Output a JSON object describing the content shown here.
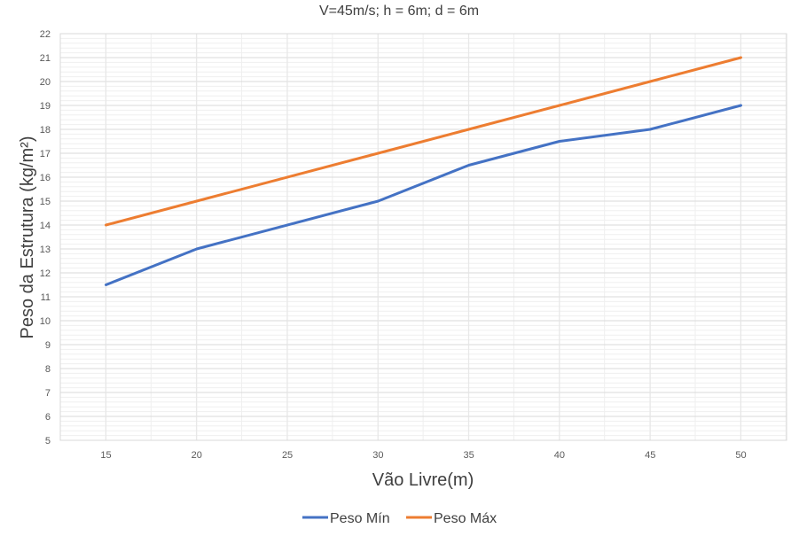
{
  "chart_data": {
    "type": "line",
    "title": "V=45m/s; h = 6m; d = 6m",
    "xlabel": "Vão Livre(m)",
    "ylabel": "Peso da Estrutura (kg/m²)",
    "categories": [
      "15",
      "20",
      "25",
      "30",
      "35",
      "40",
      "45",
      "50"
    ],
    "ylim": [
      5,
      22
    ],
    "yticks": [
      "5",
      "6",
      "7",
      "8",
      "9",
      "10",
      "11",
      "12",
      "13",
      "14",
      "15",
      "16",
      "17",
      "18",
      "19",
      "20",
      "21",
      "22"
    ],
    "grid": true,
    "legend_position": "bottom",
    "series": [
      {
        "name": "Peso Mín",
        "color": "#4472c4",
        "values": [
          11.5,
          13,
          null,
          15,
          16.5,
          17.5,
          18,
          19
        ]
      },
      {
        "name": "Peso Máx",
        "color": "#ed7d31",
        "values": [
          14,
          15,
          null,
          17,
          18,
          19,
          20,
          21
        ]
      }
    ]
  }
}
